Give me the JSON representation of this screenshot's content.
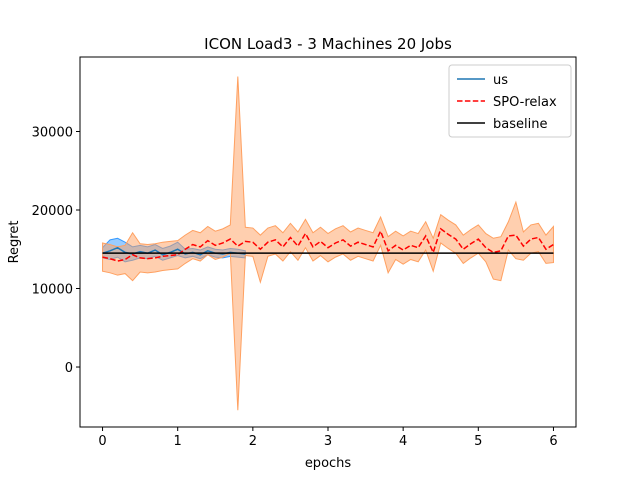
{
  "chart_data": {
    "type": "line",
    "title": "ICON Load3 - 3 Machines 20 Jobs",
    "x_label": "epochs",
    "y_label": "Regret",
    "xlim": [
      -0.3,
      6.3
    ],
    "ylim": [
      -7640,
      39490
    ],
    "xticks": [
      0,
      1,
      2,
      3,
      4,
      5,
      6
    ],
    "yticks": [
      0,
      10000,
      20000,
      30000
    ],
    "legend": "upper right",
    "series": [
      {
        "name": "us",
        "color": "#1f77b4",
        "band_color": "#3399ff",
        "dash": false,
        "x": [
          0,
          0.1,
          0.2,
          0.3,
          0.4,
          0.5,
          0.6,
          0.7,
          0.8,
          0.9,
          1,
          1.1,
          1.2,
          1.3,
          1.4,
          1.5,
          1.6,
          1.7,
          1.8,
          1.9
        ],
        "values": [
          14500,
          14800,
          15200,
          14600,
          14400,
          14700,
          14500,
          14900,
          14300,
          14600,
          15000,
          14400,
          14600,
          14300,
          14800,
          14500,
          14400,
          14600,
          14500,
          14400
        ],
        "upper": [
          15200,
          16200,
          16400,
          15900,
          15300,
          15500,
          15300,
          15600,
          15100,
          15400,
          15900,
          15000,
          15100,
          14900,
          15300,
          15000,
          14900,
          15100,
          15000,
          14800
        ],
        "lower": [
          13900,
          13700,
          14000,
          13400,
          13600,
          13900,
          13800,
          14100,
          13600,
          13900,
          14200,
          13900,
          14100,
          13800,
          14300,
          14000,
          13900,
          14100,
          14000,
          13900
        ]
      },
      {
        "name": "SPO-relax",
        "color": "#ff0000",
        "band_color": "#ffa060",
        "dash": true,
        "x": [
          0,
          0.1,
          0.2,
          0.3,
          0.4,
          0.5,
          0.6,
          0.7,
          0.8,
          0.9,
          1,
          1.1,
          1.2,
          1.3,
          1.4,
          1.5,
          1.6,
          1.7,
          1.8,
          1.9,
          2,
          2.1,
          2.2,
          2.3,
          2.4,
          2.5,
          2.6,
          2.7,
          2.8,
          2.9,
          3,
          3.1,
          3.2,
          3.3,
          3.4,
          3.5,
          3.6,
          3.7,
          3.8,
          3.9,
          4,
          4.1,
          4.2,
          4.3,
          4.4,
          4.5,
          4.6,
          4.7,
          4.8,
          4.9,
          5,
          5.1,
          5.2,
          5.3,
          5.4,
          5.5,
          5.6,
          5.7,
          5.8,
          5.9,
          6
        ],
        "values": [
          14000,
          13800,
          13500,
          13700,
          14300,
          13900,
          13800,
          13900,
          14100,
          14200,
          14300,
          15000,
          15600,
          15300,
          16100,
          15500,
          15800,
          16300,
          15400,
          16000,
          15900,
          15000,
          15900,
          16200,
          15300,
          16500,
          15400,
          17000,
          15300,
          16000,
          15200,
          15800,
          16200,
          15400,
          15900,
          15600,
          15300,
          17300,
          14800,
          15500,
          14900,
          15500,
          15200,
          16700,
          14600,
          17600,
          16900,
          16300,
          15000,
          15700,
          16300,
          15200,
          14600,
          14800,
          16700,
          16800,
          15400,
          16300,
          16500,
          15000,
          15600
        ],
        "upper": [
          15800,
          15600,
          15300,
          15500,
          17100,
          15700,
          15600,
          15700,
          15900,
          16000,
          16100,
          16800,
          17400,
          17100,
          17900,
          17300,
          17600,
          18100,
          37000,
          17800,
          17700,
          16800,
          17700,
          18000,
          17100,
          18300,
          17200,
          18800,
          17100,
          17800,
          17000,
          17600,
          18000,
          17200,
          17700,
          17400,
          17100,
          19100,
          16600,
          17300,
          16700,
          17300,
          17000,
          18500,
          16400,
          19400,
          18700,
          18100,
          16800,
          17500,
          18100,
          17000,
          16400,
          16600,
          18500,
          21000,
          17200,
          18100,
          18300,
          16800,
          17900
        ],
        "lower": [
          12200,
          12000,
          11700,
          11900,
          11000,
          12100,
          12000,
          12100,
          12300,
          12400,
          12500,
          13200,
          13800,
          13500,
          14300,
          13700,
          14000,
          14500,
          -5500,
          14200,
          14100,
          10800,
          14100,
          14400,
          13500,
          14700,
          13600,
          15200,
          13500,
          14200,
          13400,
          14000,
          14400,
          13600,
          14100,
          13800,
          13500,
          15500,
          12000,
          13700,
          13100,
          13700,
          13400,
          14900,
          12200,
          15800,
          15100,
          14500,
          13200,
          13900,
          14500,
          13400,
          11200,
          11000,
          14900,
          13800,
          13600,
          14500,
          14700,
          13200,
          13300
        ]
      },
      {
        "name": "baseline",
        "color": "#000000",
        "dash": false,
        "x": [
          0,
          6
        ],
        "values": [
          14500,
          14500
        ]
      }
    ]
  }
}
